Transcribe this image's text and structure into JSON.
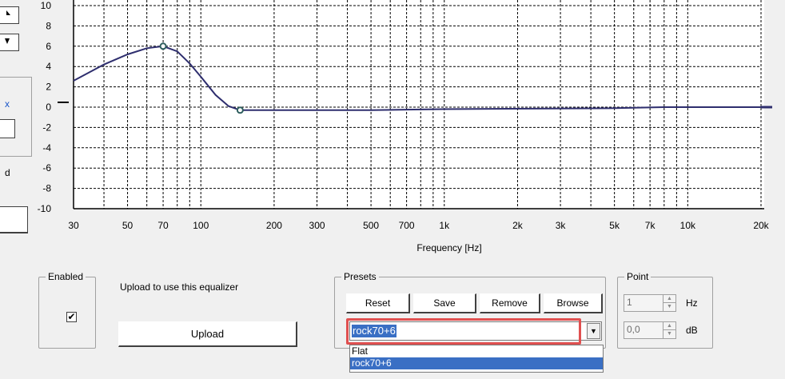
{
  "left_panel": {
    "fragment_x": "x",
    "fragment_d": "d"
  },
  "chart_data": {
    "type": "line",
    "xscale": "log",
    "xlabel": "Frequency [Hz]",
    "ylabel": "",
    "xlim": [
      30,
      20000
    ],
    "ylim": [
      -10,
      10
    ],
    "x_ticks": [
      "30",
      "50",
      "70",
      "100",
      "200",
      "300",
      "500",
      "700",
      "1k",
      "2k",
      "3k",
      "5k",
      "7k",
      "10k",
      "20k"
    ],
    "y_ticks": [
      "10",
      "8",
      "6",
      "4",
      "2",
      "0",
      "-2",
      "-4",
      "-6",
      "-8",
      "-10"
    ],
    "grid": true,
    "series": [
      {
        "x": [
          30,
          40,
          50,
          60,
          70,
          80,
          90,
          100,
          115,
          130,
          145,
          200,
          500,
          1000,
          5000,
          8000,
          10000,
          20000
        ],
        "y": [
          2.6,
          4.2,
          5.2,
          5.8,
          6.0,
          5.5,
          4.3,
          3.0,
          1.2,
          0.1,
          -0.3,
          -0.3,
          -0.3,
          -0.2,
          -0.1,
          0.0,
          0.0,
          0.0
        ]
      }
    ],
    "control_points": [
      {
        "x": 70,
        "y": 6
      },
      {
        "x": 145,
        "y": -0.3
      }
    ],
    "colors": {
      "line": "#2e2e6e",
      "grid": "#000000",
      "background": "#ffffff"
    }
  },
  "enabled_group": {
    "title": "Enabled",
    "checked": true,
    "check_glyph": "✔"
  },
  "upload": {
    "text": "Upload to use this equalizer",
    "button_label": "Upload"
  },
  "presets": {
    "title": "Presets",
    "buttons": [
      "Reset",
      "Save",
      "Remove",
      "Browse"
    ],
    "selected": "rock70+6",
    "options": [
      "Flat",
      "rock70+6"
    ]
  },
  "point": {
    "title": "Point",
    "hz_value": "1",
    "hz_unit": "Hz",
    "db_value": "0,0",
    "db_unit": "dB"
  }
}
